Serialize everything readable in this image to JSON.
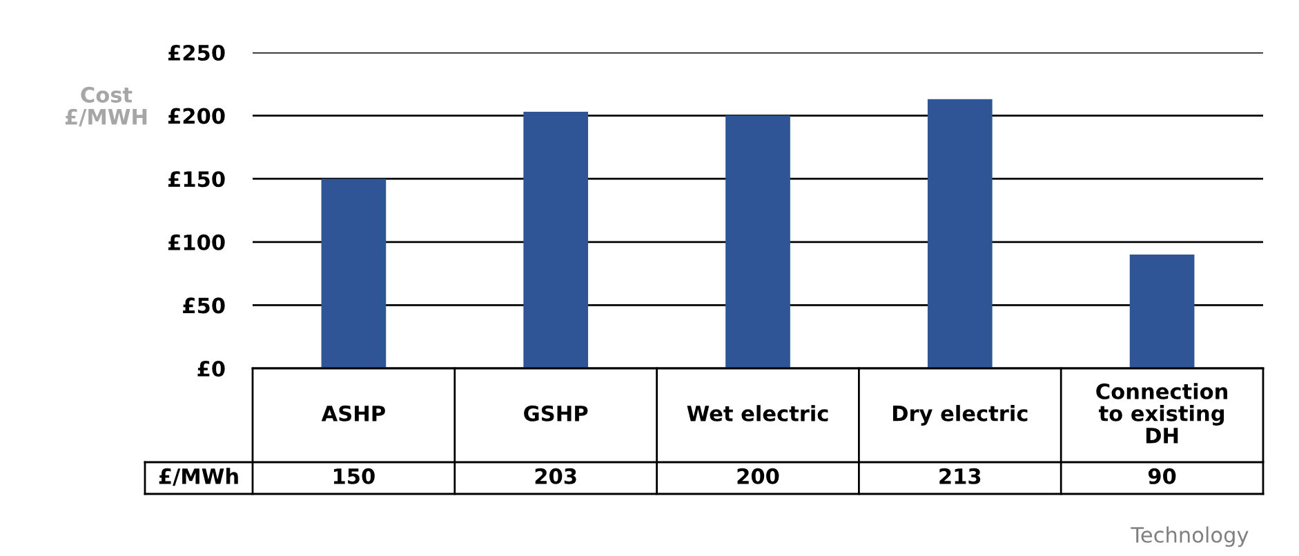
{
  "chart_data": {
    "type": "bar",
    "categories": [
      "ASHP",
      "GSHP",
      "Wet electric",
      "Dry electric",
      "Connection\nto existing\nDH"
    ],
    "values": [
      150,
      203,
      200,
      213,
      90
    ],
    "color": "#2f5597",
    "ylim": [
      0,
      250
    ],
    "yticks": [
      {
        "value": 0,
        "label": "£0"
      },
      {
        "value": 50,
        "label": "£50"
      },
      {
        "value": 100,
        "label": "£100"
      },
      {
        "value": 150,
        "label": "£150"
      },
      {
        "value": 200,
        "label": "£200"
      },
      {
        "value": 250,
        "label": "£250"
      }
    ],
    "grid": "y",
    "data_labels": true,
    "ylabel": "Cost\n£/MWH",
    "xlabel": "Technology",
    "annotations": [
      "£/MWh"
    ]
  }
}
